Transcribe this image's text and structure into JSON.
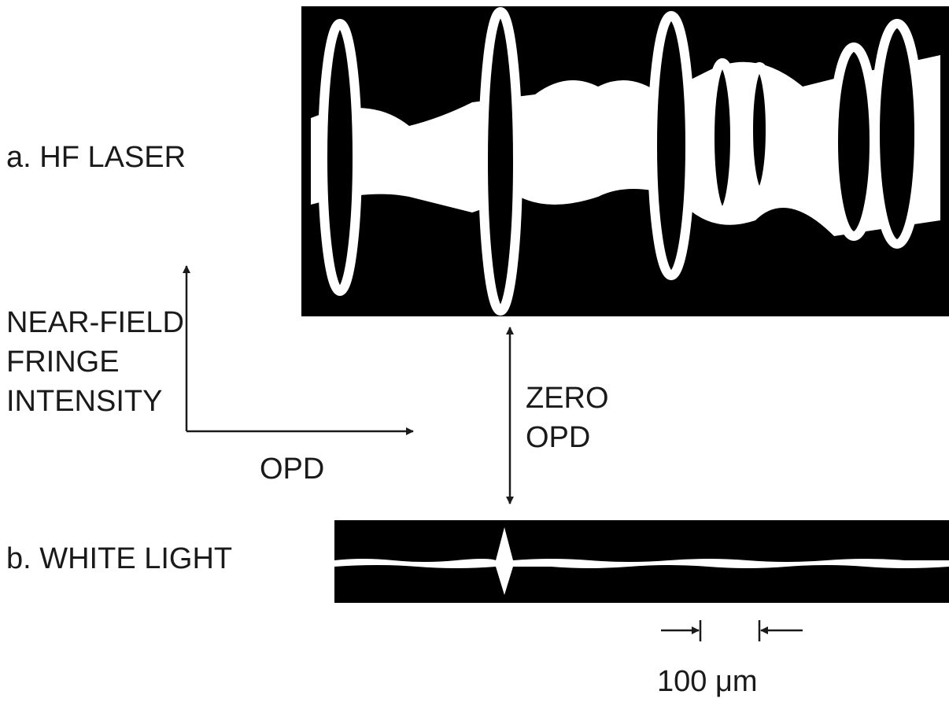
{
  "labels": {
    "a": "a. HF LASER",
    "b": "b. WHITE LIGHT"
  },
  "axes": {
    "y_label": [
      "NEAR-FIELD",
      "FRINGE",
      "INTENSITY"
    ],
    "x_label": "OPD"
  },
  "zero_opd": [
    "ZERO",
    "OPD"
  ],
  "scale_bar": "100 μm"
}
